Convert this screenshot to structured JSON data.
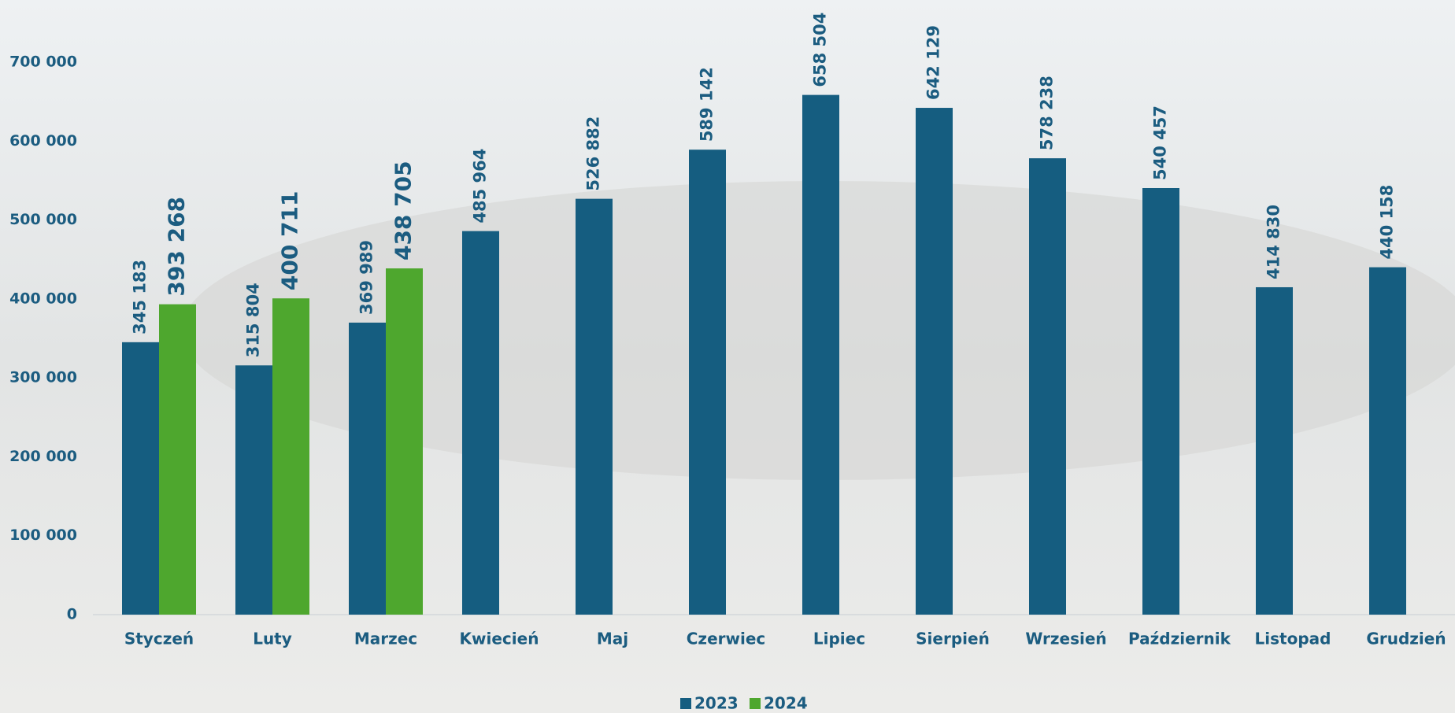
{
  "chart_data": {
    "type": "bar",
    "categories": [
      "Styczeń",
      "Luty",
      "Marzec",
      "Kwiecień",
      "Maj",
      "Czerwiec",
      "Lipiec",
      "Sierpień",
      "Wrzesień",
      "Październik",
      "Listopad",
      "Grudzień"
    ],
    "series": [
      {
        "name": "2023",
        "color": "#155d80",
        "values": [
          345183,
          315804,
          369989,
          485964,
          526882,
          589142,
          658504,
          642129,
          578238,
          540457,
          414830,
          440158
        ],
        "value_labels": [
          "345 183",
          "315 804",
          "369 989",
          "485 964",
          "526 882",
          "589 142",
          "658 504",
          "642 129",
          "578 238",
          "540 457",
          "414 830",
          "440 158"
        ]
      },
      {
        "name": "2024",
        "color": "#4ea72e",
        "values": [
          393268,
          400711,
          438705,
          null,
          null,
          null,
          null,
          null,
          null,
          null,
          null,
          null
        ],
        "value_labels": [
          "393 268",
          "400 711",
          "438 705",
          null,
          null,
          null,
          null,
          null,
          null,
          null,
          null,
          null
        ]
      }
    ],
    "ylim": [
      0,
      700000
    ],
    "yticks": [
      0,
      {
        "value": 100000,
        "label": "100 000"
      },
      {
        "value": 200000,
        "label": "200 000"
      },
      {
        "value": 300000,
        "label": "300 000"
      },
      {
        "value": 400000,
        "label": "400 000"
      },
      {
        "value": 500000,
        "label": "500 000"
      },
      {
        "value": 600000,
        "label": "600 000"
      },
      {
        "value": 700000,
        "label": "700 000"
      }
    ],
    "grid": false,
    "legend": "bottom"
  }
}
